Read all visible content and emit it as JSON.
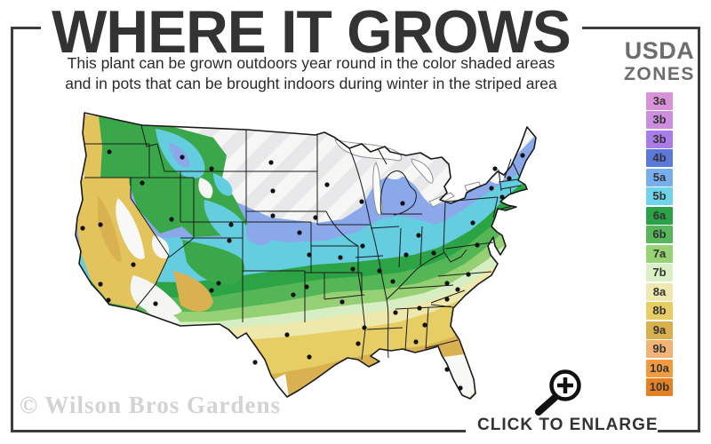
{
  "header": {
    "title": "WHERE IT GROWS",
    "subtitle_line1": "This plant can be grown outdoors year round in the color shaded areas",
    "subtitle_line2": "and in pots that can be brought indoors during winter in the striped area"
  },
  "legend": {
    "title_line1": "USDA",
    "title_line2": "ZONES",
    "zones": [
      {
        "label": "3a",
        "color": "#d893d8"
      },
      {
        "label": "3b",
        "color": "#cd8ede"
      },
      {
        "label": "3b",
        "color": "#a97cea"
      },
      {
        "label": "4b",
        "color": "#5b79da"
      },
      {
        "label": "5a",
        "color": "#78aeec"
      },
      {
        "label": "5b",
        "color": "#6fd4e9"
      },
      {
        "label": "6a",
        "color": "#2da147"
      },
      {
        "label": "6b",
        "color": "#57b75a"
      },
      {
        "label": "7a",
        "color": "#97d375"
      },
      {
        "label": "7b",
        "color": "#d9efc5"
      },
      {
        "label": "8a",
        "color": "#f0e9af"
      },
      {
        "label": "8b",
        "color": "#e7cd63"
      },
      {
        "label": "9a",
        "color": "#d8b04d"
      },
      {
        "label": "9b",
        "color": "#f2b377"
      },
      {
        "label": "10a",
        "color": "#f29a40"
      },
      {
        "label": "10b",
        "color": "#e58122"
      }
    ]
  },
  "footer": {
    "watermark": "© Wilson Bros Gardens",
    "cta_label": "CLICK TO ENLARGE",
    "cta_icon": "magnifier-plus-icon"
  },
  "colors": {
    "frame": "#3d3d3d",
    "title_text": "#333333",
    "legend_title_text": "#6d6d6d",
    "stripe_area": "#e8e8eb"
  }
}
